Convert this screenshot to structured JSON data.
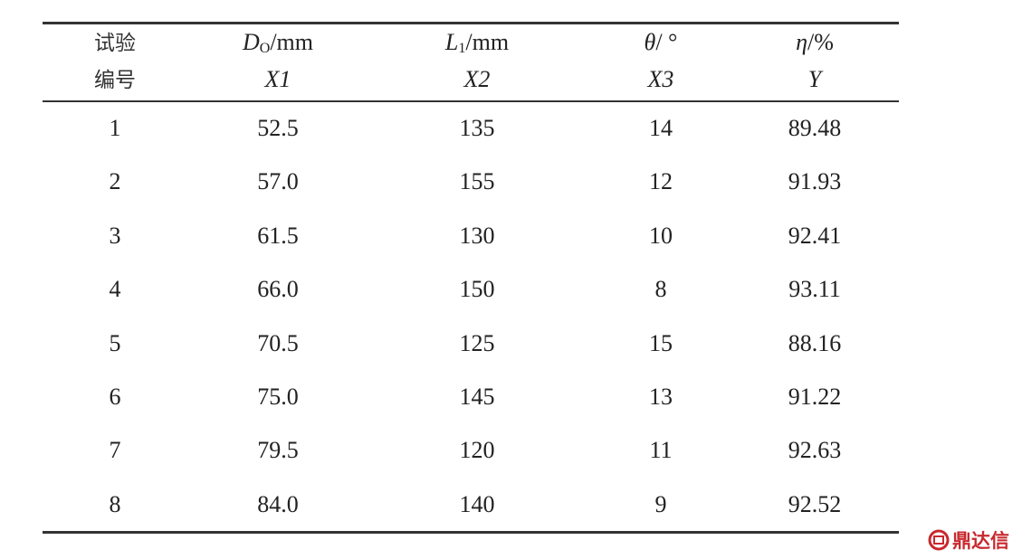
{
  "table": {
    "header": [
      {
        "line1": "试验",
        "line2": "编号"
      },
      {
        "symbol": "D",
        "sub": "O",
        "unit": "/mm",
        "line2": "X1"
      },
      {
        "symbol": "L",
        "sub": "1",
        "unit": "/mm",
        "line2": "X2"
      },
      {
        "symbol": "θ",
        "unit": "/ °",
        "line2": "X3"
      },
      {
        "symbol": "η",
        "unit": "/%",
        "line2": "Y"
      }
    ],
    "rows": [
      [
        "1",
        "52.5",
        "135",
        "14",
        "89.48"
      ],
      [
        "2",
        "57.0",
        "155",
        "12",
        "91.93"
      ],
      [
        "3",
        "61.5",
        "130",
        "10",
        "92.41"
      ],
      [
        "4",
        "66.0",
        "150",
        "8",
        "93.11"
      ],
      [
        "5",
        "70.5",
        "125",
        "15",
        "88.16"
      ],
      [
        "6",
        "75.0",
        "145",
        "13",
        "91.22"
      ],
      [
        "7",
        "79.5",
        "120",
        "11",
        "92.63"
      ],
      [
        "8",
        "84.0",
        "140",
        "9",
        "92.52"
      ]
    ]
  },
  "watermark": "鼎达信"
}
